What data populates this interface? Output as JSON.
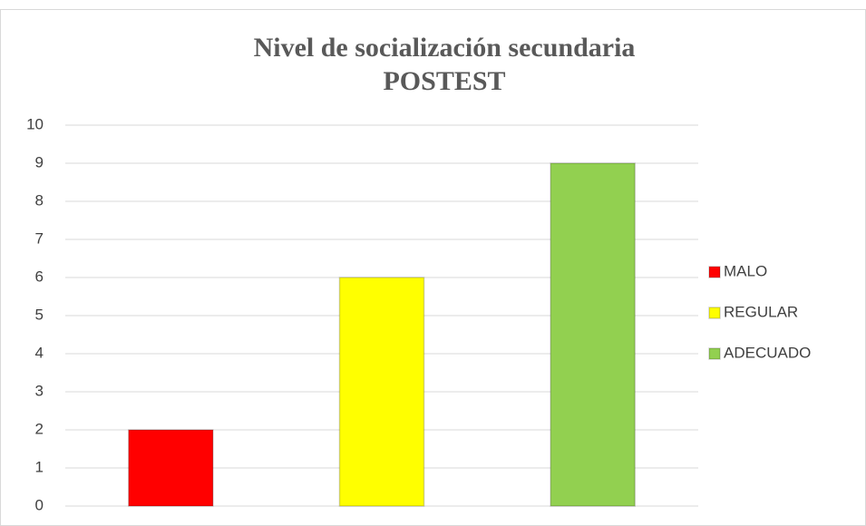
{
  "chart_data": {
    "type": "bar",
    "title": [
      "Nivel de socialización secundaria",
      "POSTEST"
    ],
    "categories": [
      null
    ],
    "series": [
      {
        "name": "MALO",
        "color": "#ff0000",
        "values": [
          2
        ]
      },
      {
        "name": "REGULAR",
        "color": "#ffff00",
        "values": [
          6
        ]
      },
      {
        "name": "ADECUADO",
        "color": "#92d050",
        "values": [
          9
        ]
      }
    ],
    "ylim": [
      0,
      10
    ],
    "yticks": [
      0,
      1,
      2,
      3,
      4,
      5,
      6,
      7,
      8,
      9,
      10
    ],
    "grid": true,
    "legend": "right"
  }
}
